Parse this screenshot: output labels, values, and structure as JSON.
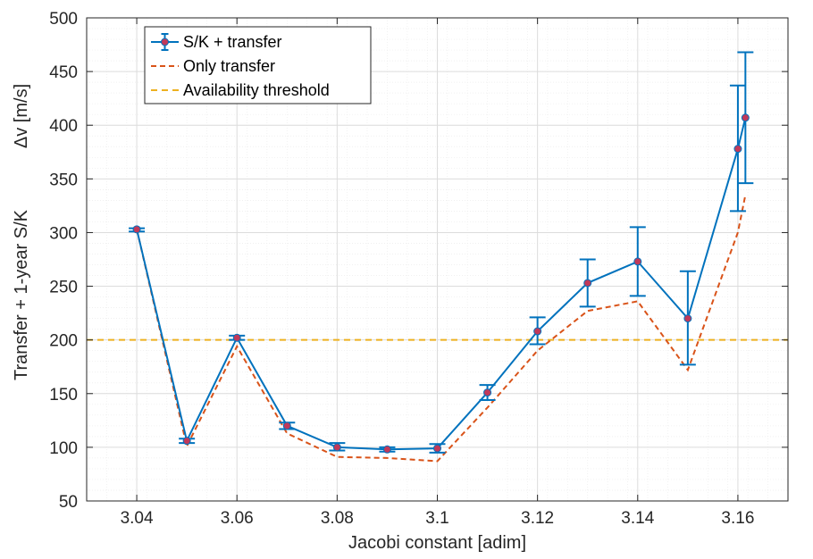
{
  "chart_data": {
    "type": "line",
    "xlabel": "Jacobi constant [adim]",
    "ylabel_line1": "Transfer + 1-year S/K",
    "ylabel_line2": "Δv [m/s]",
    "xlim": [
      3.03,
      3.17
    ],
    "ylim": [
      50,
      500
    ],
    "xticks": [
      3.04,
      3.06,
      3.08,
      3.1,
      3.12,
      3.14,
      3.16
    ],
    "xtick_labels": [
      "3.04",
      "3.06",
      "3.08",
      "3.1",
      "3.12",
      "3.14",
      "3.16"
    ],
    "yticks": [
      50,
      100,
      150,
      200,
      250,
      300,
      350,
      400,
      450,
      500
    ],
    "ytick_labels": [
      "50",
      "100",
      "150",
      "200",
      "250",
      "300",
      "350",
      "400",
      "450",
      "500"
    ],
    "grid": true,
    "minor_grid": true,
    "legend_position": "top-left",
    "series": [
      {
        "name": "S/K + transfer",
        "style": "solid-line-markers-errorbars",
        "color": "#0072BD",
        "marker_fill": "#C0395A",
        "points": [
          {
            "x": 3.04,
            "y": 303,
            "low": 301,
            "high": 304
          },
          {
            "x": 3.05,
            "y": 106,
            "low": 104,
            "high": 108
          },
          {
            "x": 3.06,
            "y": 202,
            "low": 200,
            "high": 204
          },
          {
            "x": 3.07,
            "y": 120,
            "low": 117,
            "high": 123
          },
          {
            "x": 3.08,
            "y": 100,
            "low": 97,
            "high": 104
          },
          {
            "x": 3.09,
            "y": 98,
            "low": 96,
            "high": 100
          },
          {
            "x": 3.1,
            "y": 99,
            "low": 95,
            "high": 103
          },
          {
            "x": 3.11,
            "y": 151,
            "low": 144,
            "high": 158
          },
          {
            "x": 3.12,
            "y": 208,
            "low": 196,
            "high": 221
          },
          {
            "x": 3.13,
            "y": 253,
            "low": 231,
            "high": 275
          },
          {
            "x": 3.14,
            "y": 273,
            "low": 241,
            "high": 305
          },
          {
            "x": 3.15,
            "y": 220,
            "low": 177,
            "high": 264
          },
          {
            "x": 3.16,
            "y": 378,
            "low": 320,
            "high": 437
          },
          {
            "x": 3.1615,
            "y": 407,
            "low": 346,
            "high": 468
          }
        ]
      },
      {
        "name": "Only transfer",
        "style": "dashed",
        "color": "#D95319",
        "points": [
          {
            "x": 3.04,
            "y": 303
          },
          {
            "x": 3.05,
            "y": 101
          },
          {
            "x": 3.06,
            "y": 194
          },
          {
            "x": 3.07,
            "y": 113
          },
          {
            "x": 3.08,
            "y": 91
          },
          {
            "x": 3.09,
            "y": 90
          },
          {
            "x": 3.1,
            "y": 87
          },
          {
            "x": 3.11,
            "y": 137
          },
          {
            "x": 3.12,
            "y": 190
          },
          {
            "x": 3.13,
            "y": 227
          },
          {
            "x": 3.14,
            "y": 236
          },
          {
            "x": 3.15,
            "y": 172
          },
          {
            "x": 3.16,
            "y": 300
          },
          {
            "x": 3.1615,
            "y": 335
          }
        ]
      },
      {
        "name": "Availability threshold",
        "style": "dashed-horizontal",
        "color": "#EDB120",
        "value": 200
      }
    ]
  }
}
